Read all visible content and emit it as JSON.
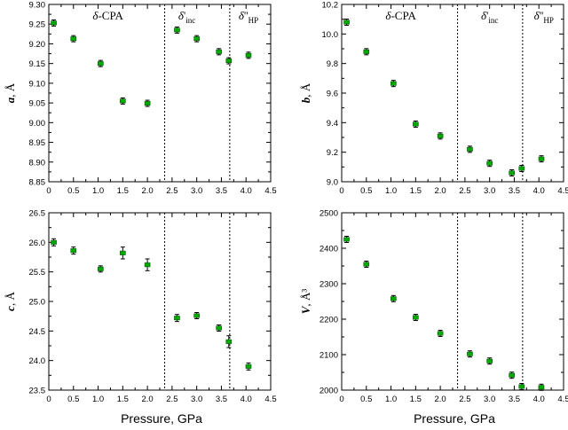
{
  "x_axis_label": "Pressure, GPa",
  "colors": {
    "marker": "#00aa00",
    "marker_edge": "#005500",
    "axis": "#000000",
    "boundary": "#000000"
  },
  "chart_data": [
    {
      "id": "a",
      "type": "scatter",
      "ylabel_symbol": "a",
      "ylabel_unit": ", Å",
      "xlim": [
        0,
        4.5
      ],
      "ylim": [
        8.85,
        9.3
      ],
      "xticks": [
        "0",
        "0.5",
        "1.0",
        "1.5",
        "2.0",
        "2.5",
        "3.0",
        "3.5",
        "4.0",
        "4.5"
      ],
      "yticks": [
        "8.85",
        "8.90",
        "8.95",
        "9.00",
        "9.05",
        "9.10",
        "9.15",
        "9.20",
        "9.25",
        "9.30"
      ],
      "boundaries": [
        2.35,
        3.67
      ],
      "phases": [
        {
          "label": "δ-CPA",
          "sup": "",
          "sub": "",
          "x": 1.2
        },
        {
          "label": "δ",
          "sup": "'",
          "sub": "inc",
          "x": 2.8
        },
        {
          "label": "δ",
          "sup": "''",
          "sub": "HP",
          "x": 4.05
        }
      ],
      "points": [
        {
          "x": 0.1,
          "y": 9.253,
          "err": 0.002
        },
        {
          "x": 0.5,
          "y": 9.213,
          "err": 0.002
        },
        {
          "x": 1.05,
          "y": 9.15,
          "err": 0.002
        },
        {
          "x": 1.5,
          "y": 9.055,
          "err": 0.002
        },
        {
          "x": 2.0,
          "y": 9.049,
          "err": 0.002
        },
        {
          "x": 2.6,
          "y": 9.235,
          "err": 0.002
        },
        {
          "x": 3.0,
          "y": 9.213,
          "err": 0.002
        },
        {
          "x": 3.45,
          "y": 9.18,
          "err": 0.002
        },
        {
          "x": 3.65,
          "y": 9.157,
          "err": 0.002
        },
        {
          "x": 4.05,
          "y": 9.171,
          "err": 0.002
        }
      ]
    },
    {
      "id": "b",
      "type": "scatter",
      "ylabel_symbol": "b",
      "ylabel_unit": ", Å",
      "xlim": [
        0,
        4.5
      ],
      "ylim": [
        9.0,
        10.2
      ],
      "xticks": [
        "0",
        "0.5",
        "1.0",
        "1.5",
        "2.0",
        "2.5",
        "3.0",
        "3.5",
        "4.0",
        "4.5"
      ],
      "yticks": [
        "9.0",
        "9.2",
        "9.4",
        "9.6",
        "9.8",
        "10.0",
        "10.2"
      ],
      "boundaries": [
        2.35,
        3.67
      ],
      "phases": [
        {
          "label": "δ-CPA",
          "sup": "",
          "sub": "",
          "x": 1.2
        },
        {
          "label": "δ",
          "sup": "'",
          "sub": "inc",
          "x": 3.0
        },
        {
          "label": "δ",
          "sup": "''",
          "sub": "HP",
          "x": 4.1
        }
      ],
      "points": [
        {
          "x": 0.1,
          "y": 10.08,
          "err": 0.006
        },
        {
          "x": 0.5,
          "y": 9.88,
          "err": 0.006
        },
        {
          "x": 1.05,
          "y": 9.665,
          "err": 0.006
        },
        {
          "x": 1.5,
          "y": 9.39,
          "err": 0.006
        },
        {
          "x": 2.0,
          "y": 9.31,
          "err": 0.006
        },
        {
          "x": 2.6,
          "y": 9.22,
          "err": 0.006
        },
        {
          "x": 3.0,
          "y": 9.125,
          "err": 0.006
        },
        {
          "x": 3.45,
          "y": 9.06,
          "err": 0.006
        },
        {
          "x": 3.65,
          "y": 9.09,
          "err": 0.006
        },
        {
          "x": 4.05,
          "y": 9.155,
          "err": 0.006
        }
      ]
    },
    {
      "id": "c",
      "type": "scatter",
      "ylabel_symbol": "c",
      "ylabel_unit": ", Å",
      "xlim": [
        0,
        4.5
      ],
      "ylim": [
        23.5,
        26.5
      ],
      "xticks": [
        "0",
        "0.5",
        "1.0",
        "1.5",
        "2.0",
        "2.5",
        "3.0",
        "3.5",
        "4.0",
        "4.5"
      ],
      "yticks": [
        "23.5",
        "24.0",
        "24.5",
        "25.0",
        "25.5",
        "26.0",
        "26.5"
      ],
      "boundaries": [
        2.35,
        3.67
      ],
      "phases": [],
      "points": [
        {
          "x": 0.1,
          "y": 26.0,
          "err": 0.06
        },
        {
          "x": 0.5,
          "y": 25.86,
          "err": 0.06
        },
        {
          "x": 1.05,
          "y": 25.55,
          "err": 0.05
        },
        {
          "x": 1.5,
          "y": 25.82,
          "err": 0.1
        },
        {
          "x": 2.0,
          "y": 25.62,
          "err": 0.1
        },
        {
          "x": 2.6,
          "y": 24.72,
          "err": 0.06
        },
        {
          "x": 3.0,
          "y": 24.76,
          "err": 0.03
        },
        {
          "x": 3.45,
          "y": 24.55,
          "err": 0.02
        },
        {
          "x": 3.65,
          "y": 24.32,
          "err": 0.1
        },
        {
          "x": 4.05,
          "y": 23.9,
          "err": 0.06
        }
      ]
    },
    {
      "id": "V",
      "type": "scatter",
      "ylabel_symbol": "V",
      "ylabel_unit": ", Å³",
      "xlim": [
        0,
        4.5
      ],
      "ylim": [
        2000,
        2500
      ],
      "xticks": [
        "0",
        "0.5",
        "1.0",
        "1.5",
        "2.0",
        "2.5",
        "3.0",
        "3.5",
        "4.0",
        "4.5"
      ],
      "yticks": [
        "2000",
        "2100",
        "2200",
        "2300",
        "2400",
        "2500"
      ],
      "boundaries": [
        2.35,
        3.67
      ],
      "phases": [],
      "points": [
        {
          "x": 0.1,
          "y": 2425,
          "err": 5
        },
        {
          "x": 0.5,
          "y": 2355,
          "err": 4
        },
        {
          "x": 1.05,
          "y": 2258,
          "err": 5
        },
        {
          "x": 1.5,
          "y": 2205,
          "err": 7
        },
        {
          "x": 2.0,
          "y": 2160,
          "err": 5
        },
        {
          "x": 2.6,
          "y": 2102,
          "err": 5
        },
        {
          "x": 3.0,
          "y": 2082,
          "err": 5
        },
        {
          "x": 3.45,
          "y": 2042,
          "err": 7
        },
        {
          "x": 3.65,
          "y": 2010,
          "err": 7
        },
        {
          "x": 4.05,
          "y": 2008,
          "err": 5
        }
      ]
    }
  ]
}
